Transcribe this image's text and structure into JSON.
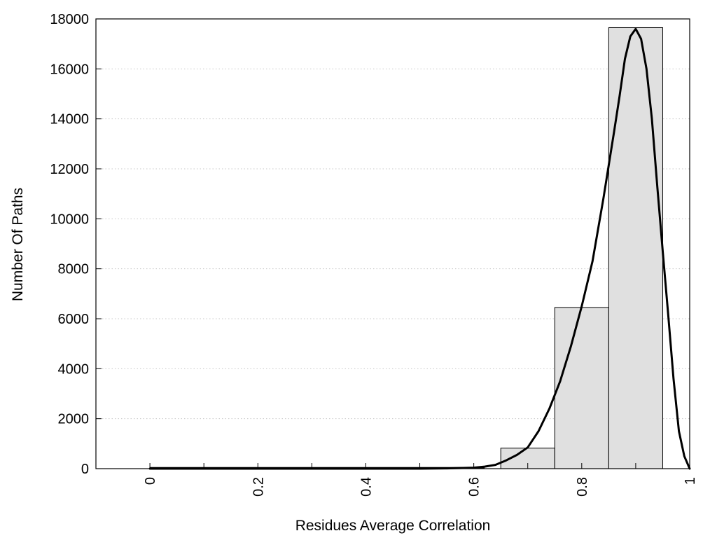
{
  "chart_data": {
    "type": "bar",
    "title": "",
    "xlabel": "Residues Average Correlation",
    "ylabel": "Number Of Paths",
    "xlim": [
      -0.1,
      1.0
    ],
    "ylim": [
      0,
      18000
    ],
    "grid": "horizontal-dotted",
    "legend": "none",
    "x_ticks": [
      0,
      0.2,
      0.4,
      0.6,
      0.8,
      1
    ],
    "x_tick_labels": [
      "0",
      "0.2",
      "0.4",
      "0.6",
      "0.8",
      "1"
    ],
    "x_minor_ticks": [
      0.1,
      0.3,
      0.5,
      0.7,
      0.9
    ],
    "y_ticks": [
      0,
      2000,
      4000,
      6000,
      8000,
      10000,
      12000,
      14000,
      16000,
      18000
    ],
    "y_tick_labels": [
      "0",
      "2000",
      "4000",
      "6000",
      "8000",
      "10000",
      "12000",
      "14000",
      "16000",
      "18000"
    ],
    "bins": [
      {
        "x0": 0.0,
        "x1": 0.05,
        "value": 0
      },
      {
        "x0": 0.05,
        "x1": 0.15,
        "value": 0
      },
      {
        "x0": 0.15,
        "x1": 0.25,
        "value": 0
      },
      {
        "x0": 0.25,
        "x1": 0.35,
        "value": 0
      },
      {
        "x0": 0.35,
        "x1": 0.45,
        "value": 0
      },
      {
        "x0": 0.45,
        "x1": 0.55,
        "value": 0
      },
      {
        "x0": 0.55,
        "x1": 0.65,
        "value": 0
      },
      {
        "x0": 0.65,
        "x1": 0.75,
        "value": 820
      },
      {
        "x0": 0.75,
        "x1": 0.85,
        "value": 6450
      },
      {
        "x0": 0.85,
        "x1": 0.95,
        "value": 17650
      }
    ],
    "curve": {
      "x": [
        0,
        0.1,
        0.2,
        0.3,
        0.4,
        0.5,
        0.55,
        0.6,
        0.62,
        0.64,
        0.66,
        0.68,
        0.7,
        0.72,
        0.74,
        0.76,
        0.78,
        0.8,
        0.82,
        0.84,
        0.86,
        0.87,
        0.88,
        0.89,
        0.9,
        0.91,
        0.92,
        0.93,
        0.94,
        0.95,
        0.96,
        0.97,
        0.98,
        0.99,
        1.0
      ],
      "y": [
        0,
        0,
        0,
        0,
        0,
        0,
        10,
        40,
        80,
        150,
        330,
        550,
        850,
        1500,
        2400,
        3500,
        4900,
        6500,
        8300,
        10800,
        13500,
        14900,
        16400,
        17300,
        17600,
        17200,
        16000,
        14000,
        11300,
        8700,
        6200,
        3600,
        1500,
        500,
        0
      ]
    },
    "colors": {
      "bar_fill": "#e0e0e0",
      "bar_stroke": "#000000",
      "curve": "#000000",
      "grid": "#c8c8c8"
    }
  }
}
